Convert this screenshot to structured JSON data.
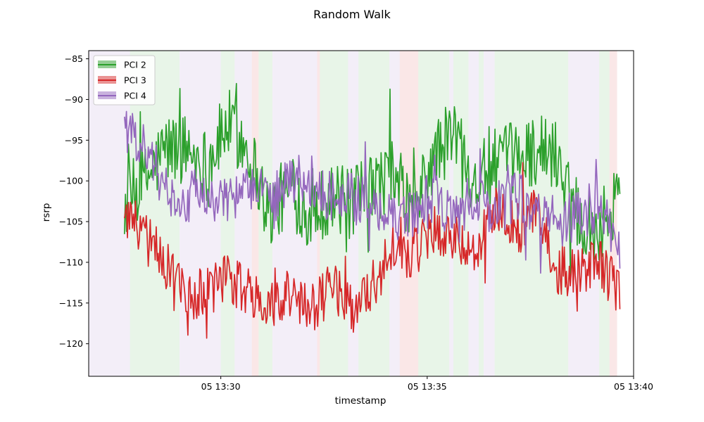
{
  "chart_data": {
    "type": "line",
    "title": "Random Walk",
    "xlabel": "timestamp",
    "ylabel": "rsrp",
    "x_unit": "minute",
    "xlim": [
      "05 13:26:48",
      "05 13:40:00"
    ],
    "ylim": [
      -124,
      -84
    ],
    "x_ticks": [
      {
        "value": "05 13:30",
        "label": "05 13:30"
      },
      {
        "value": "05 13:35",
        "label": "05 13:35"
      },
      {
        "value": "05 13:40",
        "label": "05 13:40"
      }
    ],
    "y_ticks": [
      -85,
      -90,
      -95,
      -100,
      -105,
      -110,
      -115,
      -120
    ],
    "legend": {
      "position": "upper-left",
      "entries": [
        "PCI 2",
        "PCI 3",
        "PCI 4"
      ]
    },
    "grid": false,
    "series": [
      {
        "name": "PCI 2",
        "color": "#2ca02c",
        "x": [
          "13:27:40",
          "13:28:10",
          "13:28:40",
          "13:29:10",
          "13:29:40",
          "13:30:10",
          "13:30:40",
          "13:31:10",
          "13:31:40",
          "13:32:10",
          "13:32:40",
          "13:33:10",
          "13:33:40",
          "13:34:10",
          "13:34:40",
          "13:35:10",
          "13:35:40",
          "13:36:10",
          "13:36:40",
          "13:37:10",
          "13:37:40",
          "13:38:10",
          "13:38:40",
          "13:39:10",
          "13:39:40"
        ],
        "values": [
          -103,
          -100,
          -96,
          -96,
          -98,
          -93,
          -96,
          -104,
          -101,
          -104,
          -102,
          -103,
          -101,
          -99,
          -104,
          -97,
          -94,
          -100,
          -98,
          -97,
          -96,
          -97,
          -104,
          -106,
          -101
        ]
      },
      {
        "name": "PCI 3",
        "color": "#d62728",
        "x": [
          "13:27:40",
          "13:28:10",
          "13:28:40",
          "13:29:10",
          "13:29:40",
          "13:30:10",
          "13:30:40",
          "13:31:10",
          "13:31:40",
          "13:32:10",
          "13:32:40",
          "13:33:10",
          "13:33:40",
          "13:34:10",
          "13:34:40",
          "13:35:10",
          "13:35:40",
          "13:36:10",
          "13:36:40",
          "13:37:10",
          "13:37:40",
          "13:38:10",
          "13:38:40",
          "13:39:10",
          "13:39:40"
        ],
        "values": [
          -104,
          -107,
          -110,
          -114,
          -114,
          -112,
          -114,
          -115,
          -114,
          -116,
          -113,
          -116,
          -113,
          -108,
          -109,
          -106,
          -107,
          -108,
          -104,
          -106,
          -104,
          -111,
          -111,
          -110,
          -114
        ]
      },
      {
        "name": "PCI 4",
        "color": "#9467bd",
        "x": [
          "13:27:40",
          "13:28:10",
          "13:28:40",
          "13:29:10",
          "13:29:40",
          "13:30:10",
          "13:30:40",
          "13:31:10",
          "13:31:40",
          "13:32:10",
          "13:32:40",
          "13:33:10",
          "13:33:40",
          "13:34:10",
          "13:34:40",
          "13:35:10",
          "13:35:40",
          "13:36:10",
          "13:36:40",
          "13:37:10",
          "13:37:40",
          "13:38:10",
          "13:38:40",
          "13:39:10",
          "13:39:40"
        ],
        "values": [
          -94,
          -96,
          -101,
          -102,
          -101,
          -103,
          -101,
          -103,
          -100,
          -100,
          -102,
          -102,
          -103,
          -105,
          -104,
          -102,
          -105,
          -102,
          -104,
          -102,
          -104,
          -105,
          -104,
          -103,
          -108
        ]
      }
    ],
    "bands": [
      {
        "series": "PCI 4",
        "from": "13:26:48",
        "to": "13:27:48"
      },
      {
        "series": "PCI 2",
        "from": "13:27:48",
        "to": "13:29:00"
      },
      {
        "series": "PCI 4",
        "from": "13:29:00",
        "to": "13:30:00"
      },
      {
        "series": "PCI 2",
        "from": "13:30:00",
        "to": "13:30:20"
      },
      {
        "series": "PCI 4",
        "from": "13:30:20",
        "to": "13:30:45"
      },
      {
        "series": "PCI 3",
        "from": "13:30:45",
        "to": "13:30:55"
      },
      {
        "series": "PCI 2",
        "from": "13:30:55",
        "to": "13:31:15"
      },
      {
        "series": "PCI 4",
        "from": "13:31:15",
        "to": "13:32:20"
      },
      {
        "series": "PCI 3",
        "from": "13:32:20",
        "to": "13:32:24"
      },
      {
        "series": "PCI 2",
        "from": "13:32:24",
        "to": "13:33:05"
      },
      {
        "series": "PCI 4",
        "from": "13:33:05",
        "to": "13:33:20"
      },
      {
        "series": "PCI 2",
        "from": "13:33:20",
        "to": "13:34:05"
      },
      {
        "series": "PCI 4",
        "from": "13:34:05",
        "to": "13:34:20"
      },
      {
        "series": "PCI 3",
        "from": "13:34:20",
        "to": "13:34:47"
      },
      {
        "series": "PCI 2",
        "from": "13:34:47",
        "to": "13:35:32"
      },
      {
        "series": "PCI 4",
        "from": "13:35:32",
        "to": "13:35:38"
      },
      {
        "series": "PCI 2",
        "from": "13:35:38",
        "to": "13:36:00"
      },
      {
        "series": "PCI 4",
        "from": "13:36:00",
        "to": "13:36:15"
      },
      {
        "series": "PCI 2",
        "from": "13:36:15",
        "to": "13:36:22"
      },
      {
        "series": "PCI 4",
        "from": "13:36:22",
        "to": "13:36:38"
      },
      {
        "series": "PCI 2",
        "from": "13:36:38",
        "to": "13:38:25"
      },
      {
        "series": "PCI 4",
        "from": "13:38:25",
        "to": "13:39:10"
      },
      {
        "series": "PCI 2",
        "from": "13:39:10",
        "to": "13:39:25"
      },
      {
        "series": "PCI 3",
        "from": "13:39:25",
        "to": "13:39:36"
      }
    ]
  }
}
